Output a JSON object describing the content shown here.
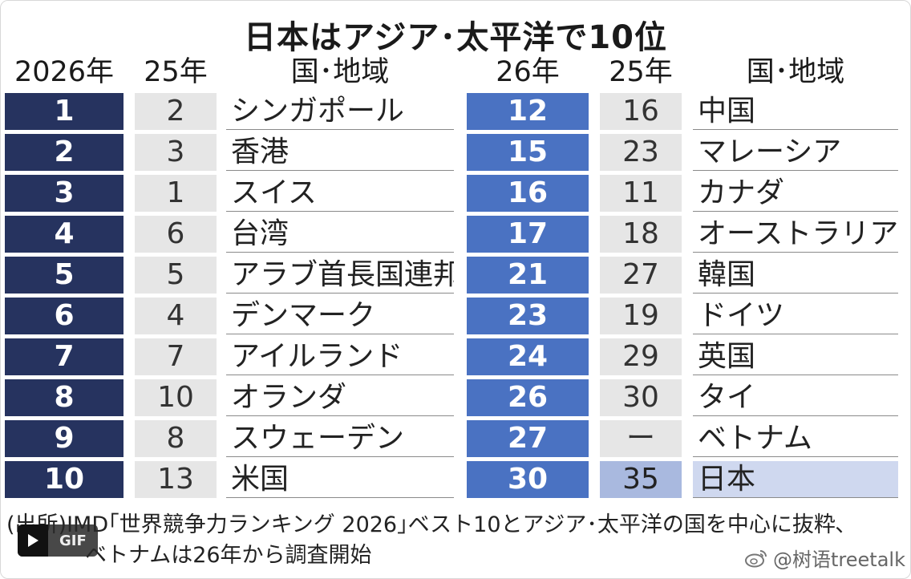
{
  "title": "日本はアジア･太平洋で10位",
  "headers": {
    "left_rank": "2026年",
    "left_prev": "25年",
    "left_name": "国･地域",
    "right_rank": "26年",
    "right_prev": "25年",
    "right_name": "国･地域"
  },
  "left_rows": [
    {
      "rank": "1",
      "prev": "2",
      "name": "シンガポール"
    },
    {
      "rank": "2",
      "prev": "3",
      "name": "香港"
    },
    {
      "rank": "3",
      "prev": "1",
      "name": "スイス"
    },
    {
      "rank": "4",
      "prev": "6",
      "name": "台湾"
    },
    {
      "rank": "5",
      "prev": "5",
      "name": "アラブ首長国連邦"
    },
    {
      "rank": "6",
      "prev": "4",
      "name": "デンマーク"
    },
    {
      "rank": "7",
      "prev": "7",
      "name": "アイルランド"
    },
    {
      "rank": "8",
      "prev": "10",
      "name": "オランダ"
    },
    {
      "rank": "9",
      "prev": "8",
      "name": "スウェーデン"
    },
    {
      "rank": "10",
      "prev": "13",
      "name": "米国"
    }
  ],
  "right_rows": [
    {
      "rank": "12",
      "prev": "16",
      "name": "中国"
    },
    {
      "rank": "15",
      "prev": "23",
      "name": "マレーシア"
    },
    {
      "rank": "16",
      "prev": "11",
      "name": "カナダ"
    },
    {
      "rank": "17",
      "prev": "18",
      "name": "オーストラリア"
    },
    {
      "rank": "21",
      "prev": "27",
      "name": "韓国"
    },
    {
      "rank": "23",
      "prev": "19",
      "name": "ドイツ"
    },
    {
      "rank": "24",
      "prev": "29",
      "name": "英国"
    },
    {
      "rank": "26",
      "prev": "30",
      "name": "タイ"
    },
    {
      "rank": "27",
      "prev": "ー",
      "name": "ベトナム"
    },
    {
      "rank": "30",
      "prev": "35",
      "name": "日本",
      "highlight": true
    }
  ],
  "note_line1": "(出所)IMD｢世界競争力ランキング 2026｣ベスト10とアジア･太平洋の国を中心に抜粋､",
  "note_line2": "ベトナムは26年から調査開始",
  "gif_button": {
    "label": "GIF",
    "icon": "play-icon"
  },
  "watermark": {
    "text": "@树语treetalk",
    "icon": "weibo-icon"
  },
  "colors": {
    "rank_left_bg": "#26335f",
    "rank_right_bg": "#4a72c2",
    "prev_bg": "#e6e6e6",
    "highlight_prev_bg": "#a9b9df",
    "highlight_name_bg": "#cfd8ef"
  }
}
